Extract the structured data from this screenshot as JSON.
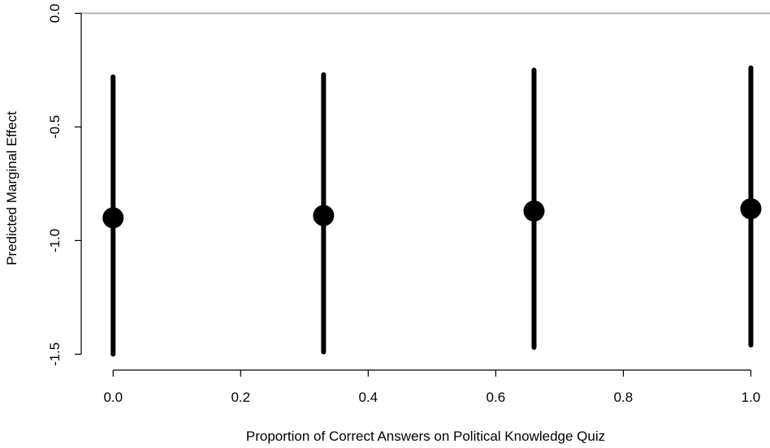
{
  "chart_data": {
    "type": "scatter",
    "style": "point-estimates-with-confidence-intervals",
    "xlabel": "Proportion of Correct Answers on Political Knowledge Quiz",
    "ylabel": "Predicted Marginal Effect",
    "xlim": [
      -0.05,
      1.03
    ],
    "ylim": [
      -1.57,
      0.03
    ],
    "x_ticks": [
      0.0,
      0.2,
      0.4,
      0.6,
      0.8,
      1.0
    ],
    "x_tick_labels": [
      "0.0",
      "0.2",
      "0.4",
      "0.6",
      "0.8",
      "1.0"
    ],
    "y_ticks": [
      0.0,
      -0.5,
      -1.0,
      -1.5
    ],
    "y_tick_labels": [
      "0.0",
      "-0.5",
      "-1.0",
      "-1.5"
    ],
    "reference_line": {
      "y": 0.0,
      "color": "#b3b3b3"
    },
    "grid": false,
    "points": [
      {
        "x": 0.0,
        "y": -0.9,
        "lower": -1.5,
        "upper": -0.28
      },
      {
        "x": 0.33,
        "y": -0.89,
        "lower": -1.49,
        "upper": -0.27
      },
      {
        "x": 0.66,
        "y": -0.87,
        "lower": -1.47,
        "upper": -0.25
      },
      {
        "x": 1.0,
        "y": -0.86,
        "lower": -1.46,
        "upper": -0.24
      }
    ],
    "colors": {
      "points": "#000000",
      "axes": "#000000"
    }
  }
}
